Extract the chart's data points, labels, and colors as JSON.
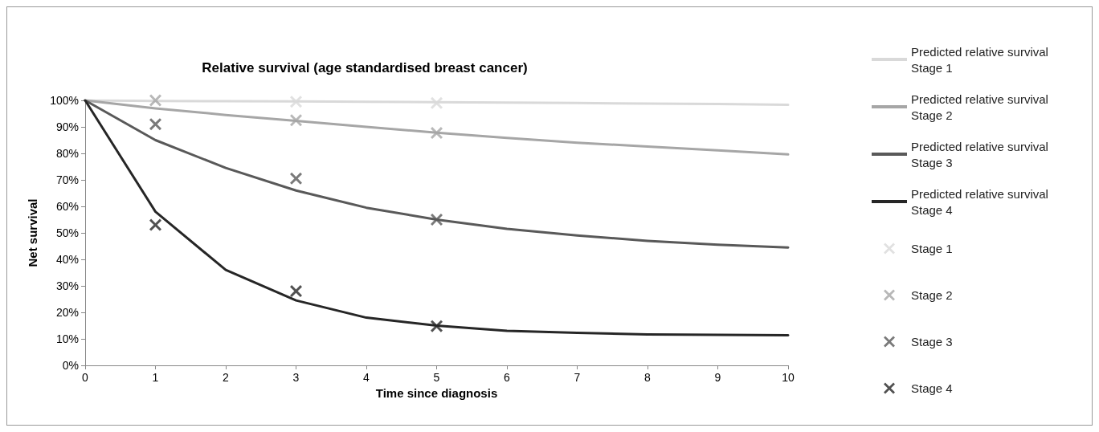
{
  "chart_data": {
    "type": "line",
    "title": "Relative survival (age standardised breast cancer)",
    "xlabel": "Time since diagnosis",
    "ylabel": "Net survival",
    "x": [
      0,
      1,
      2,
      3,
      4,
      5,
      6,
      7,
      8,
      9,
      10
    ],
    "series": [
      {
        "name": "Predicted relative survival Stage 1",
        "color": "#d9d9d9",
        "marker": "none",
        "values": [
          100,
          99.8,
          99.7,
          99.6,
          99.5,
          99.3,
          99.2,
          99,
          98.8,
          98.6,
          98.3
        ]
      },
      {
        "name": "Predicted relative survival Stage 2",
        "color": "#a6a6a6",
        "marker": "none",
        "values": [
          100,
          97,
          94.5,
          92.3,
          90,
          87.8,
          85.8,
          84,
          82.6,
          81.1,
          79.6
        ]
      },
      {
        "name": "Predicted relative survival Stage 3",
        "color": "#595959",
        "marker": "none",
        "values": [
          100,
          85,
          74.5,
          66,
          59.5,
          55,
          51.5,
          49,
          47,
          45.5,
          44.5
        ]
      },
      {
        "name": "Predicted relative survival Stage 4",
        "color": "#262626",
        "marker": "none",
        "values": [
          100,
          58,
          36,
          24.5,
          18,
          15,
          13,
          12.3,
          11.7,
          11.5,
          11.4
        ]
      },
      {
        "name": "Stage 1",
        "type": "scatter",
        "color": "#d9d9d9",
        "marker": "cross",
        "x": [
          3,
          5
        ],
        "values": [
          99.5,
          99
        ]
      },
      {
        "name": "Stage 2",
        "type": "scatter",
        "color": "#a6a6a6",
        "marker": "cross",
        "x": [
          1,
          3,
          5
        ],
        "values": [
          100,
          92.5,
          87.7
        ]
      },
      {
        "name": "Stage 3",
        "type": "scatter",
        "color": "#595959",
        "marker": "cross",
        "x": [
          1,
          3,
          5
        ],
        "values": [
          91,
          70.5,
          55
        ]
      },
      {
        "name": "Stage 4",
        "type": "scatter",
        "color": "#262626",
        "marker": "cross",
        "x": [
          1,
          3,
          5
        ],
        "values": [
          53,
          28,
          14.8
        ]
      }
    ],
    "xlim": [
      0,
      10
    ],
    "xticks": [
      0,
      1,
      2,
      3,
      4,
      5,
      6,
      7,
      8,
      9,
      10
    ],
    "ylim": [
      0,
      100
    ],
    "yticks": [
      {
        "value": 0,
        "label": "0%"
      },
      {
        "value": 10,
        "label": "10%"
      },
      {
        "value": 20,
        "label": "20%"
      },
      {
        "value": 30,
        "label": "30%"
      },
      {
        "value": 40,
        "label": "40%"
      },
      {
        "value": 50,
        "label": "50%"
      },
      {
        "value": 60,
        "label": "60%"
      },
      {
        "value": 70,
        "label": "70%"
      },
      {
        "value": 80,
        "label": "80%"
      },
      {
        "value": 90,
        "label": "90%"
      },
      {
        "value": 100,
        "label": "100%"
      }
    ],
    "grid": false,
    "legend": "right"
  }
}
